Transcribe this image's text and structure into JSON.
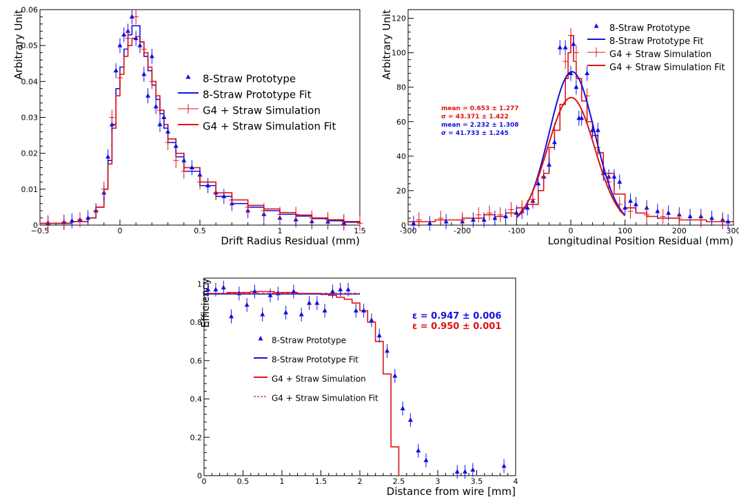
{
  "colors": {
    "prototype": "#1010e0",
    "simulation": "#e01010"
  },
  "chart_data": [
    {
      "id": "drift",
      "type": "line",
      "xlabel": "Drift Radius Residual (mm)",
      "ylabel": "Arbitrary Unit",
      "xlim": [
        -0.5,
        1.5
      ],
      "ylim": [
        0,
        0.06
      ],
      "xticks": [
        -0.5,
        0,
        0.5,
        1,
        1.5
      ],
      "xtick_labels": [
        "−0.5",
        "0",
        "0.5",
        "1",
        "1.5"
      ],
      "yticks": [
        0,
        0.01,
        0.02,
        0.03,
        0.04,
        0.05,
        0.06
      ],
      "ytick_labels": [
        "0",
        "0.01",
        "0.02",
        "0.03",
        "0.04",
        "0.05",
        "0.06"
      ],
      "legend": [
        {
          "label": "8-Straw Prototype",
          "style": "marker",
          "color": "#1010e0"
        },
        {
          "label": "8-Straw Prototype Fit",
          "style": "line",
          "color": "#1010e0"
        },
        {
          "label": "G4 + Straw Simulation",
          "style": "cross",
          "color": "#e01010"
        },
        {
          "label": "G4 + Straw Simulation Fit",
          "style": "line",
          "color": "#e01010"
        }
      ],
      "series": [
        {
          "kind": "step",
          "color": "#1010e0",
          "x": [
            -0.5,
            -0.3,
            -0.2,
            -0.15,
            -0.1,
            -0.075,
            -0.05,
            -0.025,
            0,
            0.025,
            0.05,
            0.075,
            0.1,
            0.125,
            0.15,
            0.175,
            0.2,
            0.225,
            0.25,
            0.275,
            0.3,
            0.35,
            0.4,
            0.5,
            0.6,
            0.7,
            0.8,
            0.9,
            1.0,
            1.1,
            1.2,
            1.3,
            1.4,
            1.5
          ],
          "y": [
            0.0005,
            0.001,
            0.002,
            0.005,
            0.01,
            0.018,
            0.028,
            0.038,
            0.044,
            0.049,
            0.053,
            0.0555,
            0.0555,
            0.051,
            0.047,
            0.043,
            0.039,
            0.035,
            0.031,
            0.027,
            0.023,
            0.019,
            0.015,
            0.011,
            0.008,
            0.006,
            0.005,
            0.004,
            0.003,
            0.0025,
            0.0018,
            0.0012,
            0.0008,
            0.0005
          ]
        },
        {
          "kind": "step",
          "color": "#e01010",
          "x": [
            -0.5,
            -0.3,
            -0.2,
            -0.15,
            -0.1,
            -0.075,
            -0.05,
            -0.025,
            0,
            0.025,
            0.05,
            0.075,
            0.1,
            0.125,
            0.15,
            0.175,
            0.2,
            0.225,
            0.25,
            0.275,
            0.3,
            0.35,
            0.4,
            0.5,
            0.6,
            0.7,
            0.8,
            0.9,
            1.0,
            1.1,
            1.2,
            1.3,
            1.4,
            1.5
          ],
          "y": [
            0.0005,
            0.001,
            0.002,
            0.005,
            0.01,
            0.017,
            0.027,
            0.036,
            0.042,
            0.047,
            0.05,
            0.052,
            0.0525,
            0.051,
            0.048,
            0.044,
            0.04,
            0.036,
            0.032,
            0.028,
            0.024,
            0.02,
            0.016,
            0.012,
            0.009,
            0.007,
            0.0055,
            0.0045,
            0.0035,
            0.0028,
            0.002,
            0.0015,
            0.001,
            0.0005
          ]
        },
        {
          "kind": "points",
          "marker": "triangle",
          "color": "#1010e0",
          "x": [
            -0.45,
            -0.35,
            -0.3,
            -0.25,
            -0.2,
            -0.15,
            -0.1,
            -0.075,
            -0.05,
            -0.025,
            0,
            0.025,
            0.05,
            0.075,
            0.1,
            0.125,
            0.15,
            0.175,
            0.2,
            0.225,
            0.25,
            0.275,
            0.3,
            0.35,
            0.4,
            0.45,
            0.5,
            0.55,
            0.6,
            0.65,
            0.7,
            0.8,
            0.9,
            1.0,
            1.1,
            1.2,
            1.3,
            1.4
          ],
          "y": [
            0.0006,
            0.0008,
            0.0012,
            0.0015,
            0.002,
            0.004,
            0.009,
            0.019,
            0.028,
            0.043,
            0.05,
            0.053,
            0.054,
            0.058,
            0.052,
            0.05,
            0.042,
            0.036,
            0.047,
            0.033,
            0.028,
            0.03,
            0.026,
            0.022,
            0.018,
            0.016,
            0.014,
            0.011,
            0.009,
            0.008,
            0.006,
            0.004,
            0.003,
            0.002,
            0.0015,
            0.001,
            0.0009,
            0.0006
          ]
        },
        {
          "kind": "points",
          "marker": "cross",
          "color": "#e01010",
          "x": [
            -0.45,
            -0.35,
            -0.25,
            -0.15,
            -0.1,
            -0.05,
            0,
            0.05,
            0.1,
            0.15,
            0.2,
            0.25,
            0.3,
            0.35,
            0.4,
            0.5,
            0.6,
            0.7,
            0.8,
            0.9,
            1.0,
            1.1,
            1.2,
            1.3,
            1.4,
            1.5
          ],
          "y": [
            0.0004,
            0.0008,
            0.0015,
            0.004,
            0.01,
            0.03,
            0.041,
            0.052,
            0.058,
            0.049,
            0.04,
            0.032,
            0.023,
            0.018,
            0.015,
            0.012,
            0.009,
            0.007,
            0.005,
            0.004,
            0.003,
            0.003,
            0.002,
            0.0015,
            0.001,
            0.0005
          ]
        }
      ]
    },
    {
      "id": "longitudinal",
      "type": "line",
      "xlabel": "Longitudinal Position Residual (mm)",
      "ylabel": "Arbitrary Unit",
      "xlim": [
        -300,
        300
      ],
      "ylim": [
        0,
        125
      ],
      "xticks": [
        -300,
        -200,
        -100,
        0,
        100,
        200,
        300
      ],
      "xtick_labels": [
        "-300",
        "-200",
        "-100",
        "0",
        "100",
        "200",
        "300"
      ],
      "yticks": [
        0,
        20,
        40,
        60,
        80,
        100,
        120
      ],
      "ytick_labels": [
        "0",
        "20",
        "40",
        "60",
        "80",
        "100",
        "120"
      ],
      "legend": [
        {
          "label": "8-Straw Prototype",
          "style": "marker",
          "color": "#1010e0"
        },
        {
          "label": "8-Straw Prototype Fit",
          "style": "line",
          "color": "#1010e0"
        },
        {
          "label": "G4 + Straw Simulation",
          "style": "cross",
          "color": "#e01010"
        },
        {
          "label": "G4 + Straw Simulation Fit",
          "style": "line",
          "color": "#e01010"
        }
      ],
      "stats": [
        {
          "text": "mean = 0.653 ± 1.277",
          "color": "#e01010"
        },
        {
          "text": "σ = 43.371 ± 1.422",
          "color": "#e01010"
        },
        {
          "text": "mean = 2.232 ± 1.308",
          "color": "#1010e0"
        },
        {
          "text": "σ = 41.733 ± 1.245",
          "color": "#1010e0"
        }
      ],
      "gaussians": [
        {
          "color": "#1010e0",
          "amplitude": 89,
          "mean": 2.232,
          "sigma": 41.733,
          "range": [
            -100,
            100
          ]
        },
        {
          "color": "#e01010",
          "amplitude": 74,
          "mean": 0.653,
          "sigma": 43.371,
          "range": [
            -100,
            100
          ]
        }
      ],
      "series": [
        {
          "kind": "step",
          "color": "#e01010",
          "x": [
            -300,
            -250,
            -200,
            -160,
            -140,
            -120,
            -100,
            -80,
            -60,
            -50,
            -40,
            -30,
            -20,
            -10,
            -5,
            0,
            5,
            10,
            20,
            30,
            40,
            50,
            60,
            80,
            100,
            120,
            140,
            160,
            200,
            250,
            300
          ],
          "y": [
            2,
            3,
            4,
            6,
            5,
            7,
            10,
            12,
            20,
            30,
            45,
            55,
            70,
            85,
            100,
            110,
            95,
            85,
            72,
            60,
            52,
            42,
            30,
            18,
            10,
            7,
            5,
            4,
            3,
            2,
            2
          ]
        },
        {
          "kind": "points",
          "marker": "triangle",
          "color": "#1010e0",
          "x": [
            -290,
            -260,
            -230,
            -200,
            -180,
            -160,
            -140,
            -120,
            -100,
            -90,
            -80,
            -70,
            -60,
            -50,
            -40,
            -30,
            -20,
            -10,
            0,
            5,
            10,
            15,
            20,
            30,
            40,
            50,
            60,
            70,
            80,
            90,
            100,
            110,
            120,
            140,
            160,
            180,
            200,
            220,
            240,
            260,
            280,
            290
          ],
          "y": [
            1,
            1,
            2,
            2,
            3,
            3,
            4,
            5,
            7,
            8,
            10,
            14,
            24,
            28,
            35,
            48,
            103,
            103,
            88,
            105,
            80,
            62,
            62,
            88,
            55,
            55,
            30,
            28,
            28,
            25,
            10,
            14,
            12,
            10,
            8,
            7,
            6,
            5,
            5,
            4,
            3,
            2
          ]
        },
        {
          "kind": "points",
          "marker": "cross",
          "color": "#e01010",
          "x": [
            -280,
            -240,
            -200,
            -170,
            -150,
            -130,
            -110,
            -90,
            -70,
            -50,
            -30,
            -10,
            0,
            10,
            30,
            50,
            70,
            90,
            110,
            140,
            170,
            200,
            240,
            280
          ],
          "y": [
            3,
            4,
            3,
            6,
            7,
            6,
            9,
            10,
            15,
            28,
            55,
            95,
            110,
            100,
            75,
            45,
            25,
            12,
            8,
            6,
            5,
            4,
            3,
            2
          ]
        }
      ]
    },
    {
      "id": "efficiency",
      "type": "line",
      "xlabel": "Distance from wire [mm]",
      "ylabel": "Efficiency",
      "xlim": [
        0,
        4
      ],
      "ylim": [
        0,
        1.03
      ],
      "xticks": [
        0,
        0.5,
        1,
        1.5,
        2,
        2.5,
        3,
        3.5,
        4
      ],
      "xtick_labels": [
        "0",
        "0.5",
        "1",
        "1.5",
        "2",
        "2.5",
        "3",
        "3.5",
        "4"
      ],
      "yticks": [
        0,
        0.2,
        0.4,
        0.6,
        0.8,
        1
      ],
      "ytick_labels": [
        "0",
        "0.2",
        "0.4",
        "0.6",
        "0.8",
        "1"
      ],
      "legend": [
        {
          "label": "8-Straw Prototype",
          "style": "marker",
          "color": "#1010e0"
        },
        {
          "label": "8-Straw Prototype Fit",
          "style": "line",
          "color": "#1010e0"
        },
        {
          "label": "G4 + Straw Simulation",
          "style": "line",
          "color": "#e01010"
        },
        {
          "label": "G4 + Straw Simulation Fit",
          "style": "dashed",
          "color": "#e01010"
        }
      ],
      "stats": [
        {
          "text": "ε = 0.947 ± 0.006",
          "color": "#1010e0"
        },
        {
          "text": "ε = 0.950 ± 0.001",
          "color": "#e01010"
        }
      ],
      "hlines": [
        {
          "y": 0.947,
          "x0": 0,
          "x1": 2.0,
          "color": "#1010e0",
          "dash": false
        },
        {
          "y": 0.95,
          "x0": 0,
          "x1": 2.0,
          "color": "#e01010",
          "dash": true
        }
      ],
      "series": [
        {
          "kind": "step",
          "color": "#e01010",
          "x": [
            0,
            0.3,
            0.6,
            0.9,
            1.2,
            1.5,
            1.6,
            1.7,
            1.8,
            1.9,
            2.0,
            2.1,
            2.2,
            2.3,
            2.4,
            2.5
          ],
          "y": [
            0.95,
            0.955,
            0.96,
            0.955,
            0.95,
            0.945,
            0.94,
            0.93,
            0.92,
            0.9,
            0.86,
            0.8,
            0.7,
            0.53,
            0.15,
            0.0
          ]
        },
        {
          "kind": "points",
          "marker": "triangle",
          "color": "#1010e0",
          "x": [
            0.05,
            0.15,
            0.25,
            0.35,
            0.45,
            0.55,
            0.65,
            0.75,
            0.85,
            0.95,
            1.05,
            1.15,
            1.25,
            1.35,
            1.45,
            1.55,
            1.65,
            1.75,
            1.85,
            1.95,
            2.05,
            2.15,
            2.25,
            2.35,
            2.45,
            2.55,
            2.65,
            2.75,
            2.85,
            3.25,
            3.35,
            3.45,
            3.85
          ],
          "y": [
            0.97,
            0.97,
            0.98,
            0.83,
            0.95,
            0.89,
            0.96,
            0.84,
            0.94,
            0.95,
            0.85,
            0.96,
            0.84,
            0.9,
            0.9,
            0.86,
            0.96,
            0.97,
            0.97,
            0.86,
            0.86,
            0.81,
            0.73,
            0.65,
            0.52,
            0.35,
            0.29,
            0.13,
            0.08,
            0.02,
            0.02,
            0.03,
            0.05
          ]
        }
      ]
    }
  ]
}
